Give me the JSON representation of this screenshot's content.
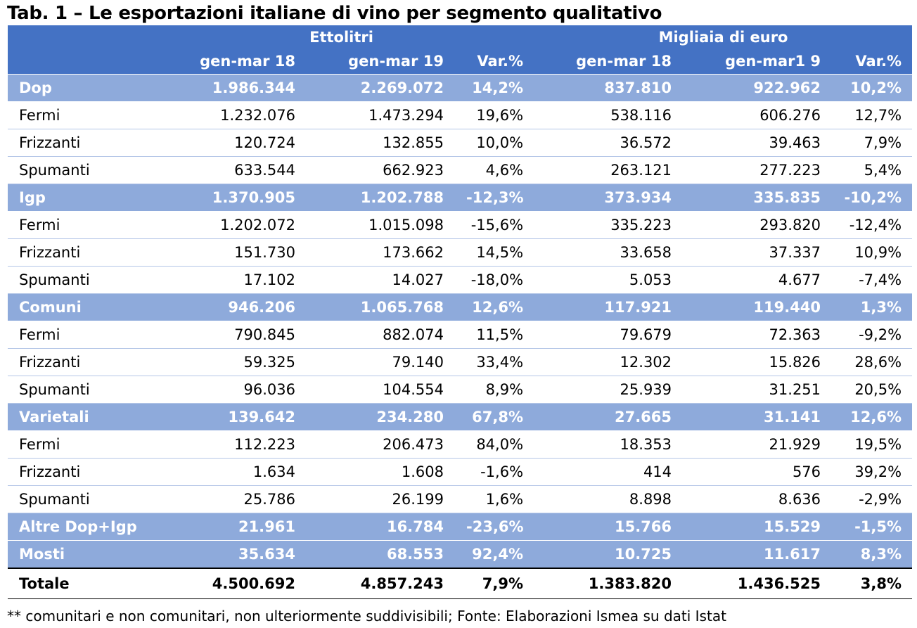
{
  "title": "Tab. 1 – Le esportazioni italiane di vino per segmento qualitativo",
  "header": {
    "group_left": "Ettolitri",
    "group_right": "Migliaia di euro",
    "columns": [
      "gen-mar 18",
      "gen-mar 19",
      "Var.%",
      "gen-mar 18",
      "gen-mar1 9",
      "Var.%"
    ]
  },
  "rows": [
    {
      "type": "group",
      "label": "Dop",
      "values": [
        "1.986.344",
        "2.269.072",
        "14,2%",
        "837.810",
        "922.962",
        "10,2%"
      ]
    },
    {
      "type": "sub",
      "label": "Fermi",
      "values": [
        "1.232.076",
        "1.473.294",
        "19,6%",
        "538.116",
        "606.276",
        "12,7%"
      ]
    },
    {
      "type": "sub",
      "label": "Frizzanti",
      "values": [
        "120.724",
        "132.855",
        "10,0%",
        "36.572",
        "39.463",
        "7,9%"
      ]
    },
    {
      "type": "sub",
      "label": "Spumanti",
      "values": [
        "633.544",
        "662.923",
        "4,6%",
        "263.121",
        "277.223",
        "5,4%"
      ]
    },
    {
      "type": "group",
      "label": "Igp",
      "values": [
        "1.370.905",
        "1.202.788",
        "-12,3%",
        "373.934",
        "335.835",
        "-10,2%"
      ]
    },
    {
      "type": "sub",
      "label": "Fermi",
      "values": [
        "1.202.072",
        "1.015.098",
        "-15,6%",
        "335.223",
        "293.820",
        "-12,4%"
      ]
    },
    {
      "type": "sub",
      "label": "Frizzanti",
      "values": [
        "151.730",
        "173.662",
        "14,5%",
        "33.658",
        "37.337",
        "10,9%"
      ]
    },
    {
      "type": "sub",
      "label": "Spumanti",
      "values": [
        "17.102",
        "14.027",
        "-18,0%",
        "5.053",
        "4.677",
        "-7,4%"
      ]
    },
    {
      "type": "group",
      "label": "Comuni",
      "values": [
        "946.206",
        "1.065.768",
        "12,6%",
        "117.921",
        "119.440",
        "1,3%"
      ]
    },
    {
      "type": "sub",
      "label": "Fermi",
      "values": [
        "790.845",
        "882.074",
        "11,5%",
        "79.679",
        "72.363",
        "-9,2%"
      ]
    },
    {
      "type": "sub",
      "label": "Frizzanti",
      "values": [
        "59.325",
        "79.140",
        "33,4%",
        "12.302",
        "15.826",
        "28,6%"
      ]
    },
    {
      "type": "sub",
      "label": "Spumanti",
      "values": [
        "96.036",
        "104.554",
        "8,9%",
        "25.939",
        "31.251",
        "20,5%"
      ]
    },
    {
      "type": "group",
      "label": "Varietali",
      "values": [
        "139.642",
        "234.280",
        "67,8%",
        "27.665",
        "31.141",
        "12,6%"
      ]
    },
    {
      "type": "sub",
      "label": "Fermi",
      "values": [
        "112.223",
        "206.473",
        "84,0%",
        "18.353",
        "21.929",
        "19,5%"
      ]
    },
    {
      "type": "sub",
      "label": "Frizzanti",
      "values": [
        "1.634",
        "1.608",
        "-1,6%",
        "414",
        "576",
        "39,2%"
      ]
    },
    {
      "type": "sub",
      "label": "Spumanti",
      "values": [
        "25.786",
        "26.199",
        "1,6%",
        "8.898",
        "8.636",
        "-2,9%"
      ]
    },
    {
      "type": "group",
      "label": "Altre Dop+Igp",
      "values": [
        "21.961",
        "16.784",
        "-23,6%",
        "15.766",
        "15.529",
        "-1,5%"
      ]
    },
    {
      "type": "group",
      "label": "Mosti",
      "values": [
        "35.634",
        "68.553",
        "92,4%",
        "10.725",
        "11.617",
        "8,3%"
      ]
    },
    {
      "type": "total",
      "label": "Totale",
      "values": [
        "4.500.692",
        "4.857.243",
        "7,9%",
        "1.383.820",
        "1.436.525",
        "3,8%"
      ]
    }
  ],
  "note": "** comunitari e non comunitari, non ulteriormente suddivisibili; Fonte: Elaborazioni Ismea su dati Istat",
  "colors": {
    "header": "#4472c4",
    "group_row": "#8eaadb",
    "text_on_color": "#ffffff"
  }
}
